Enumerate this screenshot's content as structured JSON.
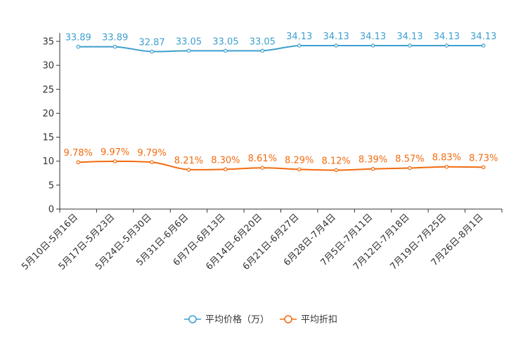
{
  "chart_data": {
    "type": "line",
    "title": "",
    "xlabel": "",
    "ylabel": "",
    "ylim": [
      0,
      35
    ],
    "yticks": [
      0,
      5,
      10,
      15,
      20,
      25,
      30,
      35
    ],
    "grid": false,
    "legend_position": "bottom-center",
    "categories": [
      "5月10日-5月16日",
      "5月17日-5月23日",
      "5月24日-5月30日",
      "5月31日-6月6日",
      "6月7日-6月13日",
      "6月14日-6月20日",
      "6月21日-6月27日",
      "6月28日-7月4日",
      "7月5日-7月11日",
      "7月12日-7月18日",
      "7月19日-7月25日",
      "7月26日-8月1日"
    ],
    "series": [
      {
        "name": "平均价格（万）",
        "color": "#3d9fd0",
        "values": [
          33.89,
          33.89,
          32.87,
          33.05,
          33.05,
          33.05,
          34.13,
          34.13,
          34.13,
          34.13,
          34.13,
          34.13
        ],
        "labels": [
          "33.89",
          "33.89",
          "32.87",
          "33.05",
          "33.05",
          "33.05",
          "34.13",
          "34.13",
          "34.13",
          "34.13",
          "34.13",
          "34.13"
        ]
      },
      {
        "name": "平均折扣",
        "color": "#f26b0f",
        "values": [
          9.78,
          9.97,
          9.79,
          8.21,
          8.3,
          8.61,
          8.29,
          8.12,
          8.39,
          8.57,
          8.83,
          8.73
        ],
        "labels": [
          "9.78%",
          "9.97%",
          "9.79%",
          "8.21%",
          "8.30%",
          "8.61%",
          "8.29%",
          "8.12%",
          "8.39%",
          "8.57%",
          "8.83%",
          "8.73%"
        ]
      }
    ]
  }
}
